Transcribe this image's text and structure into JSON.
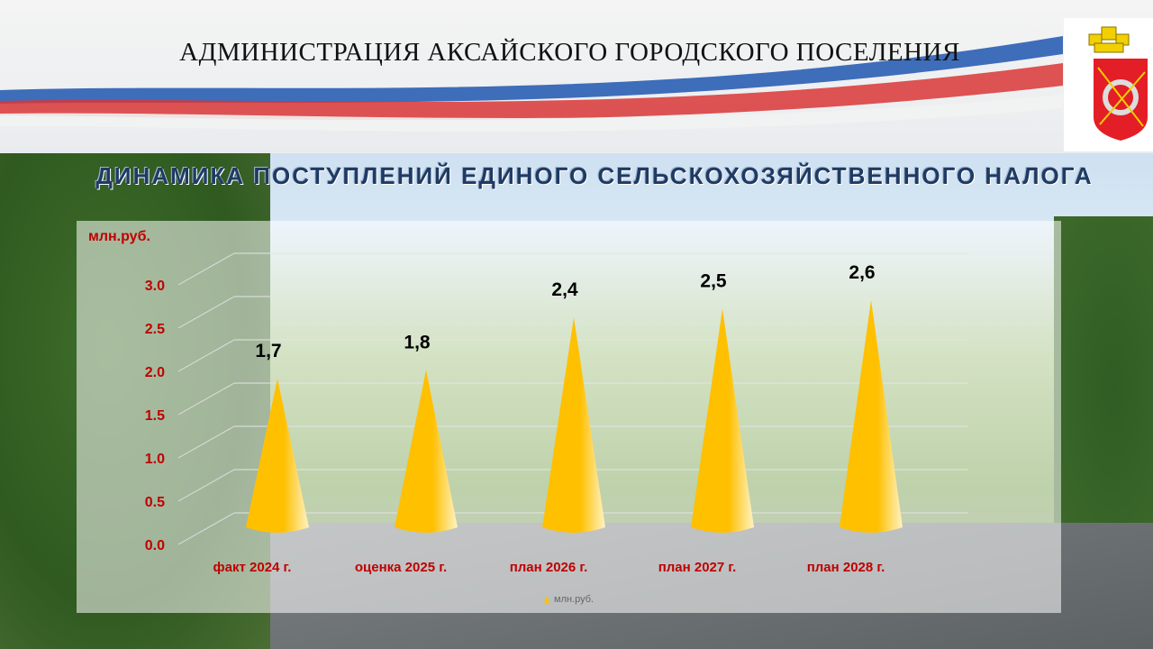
{
  "header": {
    "title": "АДМИНИСТРАЦИЯ АКСАЙСКОГО ГОРОДСКОГО ПОСЕЛЕНИЯ",
    "logo": "coat-of-arms"
  },
  "colors": {
    "cone": "#ffc000",
    "axis_text": "#c00000",
    "value_text": "#000000",
    "subtitle": "#1f3b63"
  },
  "chart_data": {
    "type": "bar",
    "shape": "cone-3d",
    "title": "ДИНАМИКА ПОСТУПЛЕНИЙ ЕДИНОГО СЕЛЬСКОХОЗЯЙСТВЕННОГО НАЛОГА",
    "ylabel": "млн.руб.",
    "ylim": [
      0,
      3.0
    ],
    "yticks": [
      "0.0",
      "0.5",
      "1.0",
      "1.5",
      "2.0",
      "2.5",
      "3.0"
    ],
    "categories": [
      "факт 2024 г.",
      "оценка 2025 г.",
      "план 2026 г.",
      "план 2027 г.",
      "план 2028 г."
    ],
    "series": [
      {
        "name": "млн.руб.",
        "values": [
          1.7,
          1.8,
          2.4,
          2.5,
          2.6
        ]
      }
    ],
    "data_labels": [
      "1,7",
      "1,8",
      "2,4",
      "2,5",
      "2,6"
    ],
    "grid": true,
    "legend": "bottom"
  }
}
